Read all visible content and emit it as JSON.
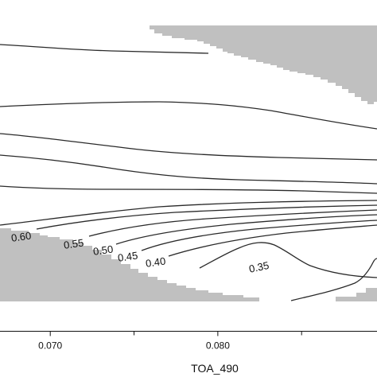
{
  "chart_data": {
    "type": "contour",
    "title": "",
    "xlabel": "TOA_490",
    "ylabel": "",
    "xlim": [
      0.067,
      0.0895
    ],
    "x_ticks": [
      {
        "value": 0.07,
        "label": "0.070"
      },
      {
        "value": 0.08,
        "label": "0.080"
      }
    ],
    "x_minor_ticks": [
      0.075,
      0.085
    ],
    "contour_labels": [
      "0.60",
      "0.55",
      "0.50",
      "0.45",
      "0.40",
      "0.35"
    ],
    "masked_region_color": "#c0c0c0",
    "line_color": "#2a2a2a",
    "grid": false,
    "legend": "none"
  }
}
